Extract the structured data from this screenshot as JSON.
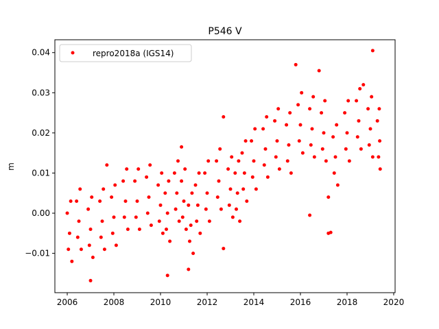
{
  "chart_data": {
    "type": "scatter",
    "title": "P546 V",
    "xlabel": "",
    "ylabel": "m",
    "xlim": [
      2005.47,
      2020.06
    ],
    "ylim": [
      -0.0198,
      0.0432
    ],
    "xticks": [
      2006,
      2008,
      2010,
      2012,
      2014,
      2016,
      2018,
      2020
    ],
    "xtick_labels": [
      "2006",
      "2008",
      "2010",
      "2012",
      "2014",
      "2016",
      "2018",
      "2020"
    ],
    "yticks": [
      -0.01,
      0.0,
      0.01,
      0.02,
      0.03,
      0.04
    ],
    "ytick_labels": [
      "−0.01",
      "0.00",
      "0.01",
      "0.02",
      "0.03",
      "0.04"
    ],
    "grid": false,
    "legend": {
      "placement": "top-left",
      "entries": [
        "repro2018a (IGS14)"
      ]
    },
    "series": [
      {
        "name": "repro2018a (IGS14)",
        "color": "#ff0000",
        "points": [
          [
            2006.0,
            0.0
          ],
          [
            2006.05,
            -0.009
          ],
          [
            2006.1,
            -0.005
          ],
          [
            2006.15,
            0.003
          ],
          [
            2006.2,
            -0.012
          ],
          [
            2006.4,
            0.003
          ],
          [
            2006.45,
            -0.006
          ],
          [
            2006.5,
            -0.002
          ],
          [
            2006.55,
            0.006
          ],
          [
            2006.6,
            -0.009
          ],
          [
            2006.9,
            0.001
          ],
          [
            2006.95,
            -0.008
          ],
          [
            2007.0,
            -0.004
          ],
          [
            2007.05,
            0.004
          ],
          [
            2007.1,
            -0.011
          ],
          [
            2007.4,
            0.003
          ],
          [
            2007.45,
            -0.006
          ],
          [
            2007.5,
            -0.002
          ],
          [
            2007.55,
            0.006
          ],
          [
            2007.6,
            -0.009
          ],
          [
            2007.9,
            0.004
          ],
          [
            2007.95,
            -0.005
          ],
          [
            2008.0,
            -0.001
          ],
          [
            2008.05,
            0.007
          ],
          [
            2008.1,
            -0.008
          ],
          [
            2008.4,
            0.008
          ],
          [
            2008.45,
            -0.001
          ],
          [
            2008.5,
            0.003
          ],
          [
            2008.55,
            0.011
          ],
          [
            2008.6,
            -0.004
          ],
          [
            2008.9,
            0.008
          ],
          [
            2008.95,
            -0.001
          ],
          [
            2009.0,
            0.003
          ],
          [
            2009.05,
            0.011
          ],
          [
            2009.1,
            -0.004
          ],
          [
            2009.4,
            0.009
          ],
          [
            2009.45,
            0.0
          ],
          [
            2009.5,
            0.004
          ],
          [
            2009.55,
            0.012
          ],
          [
            2009.6,
            -0.003
          ],
          [
            2009.9,
            0.007
          ],
          [
            2009.95,
            -0.002
          ],
          [
            2010.0,
            0.002
          ],
          [
            2010.05,
            0.01
          ],
          [
            2010.1,
            -0.005
          ],
          [
            2010.2,
            0.005
          ],
          [
            2010.25,
            -0.004
          ],
          [
            2010.3,
            0.0
          ],
          [
            2010.35,
            0.008
          ],
          [
            2010.4,
            -0.007
          ],
          [
            2010.6,
            0.01
          ],
          [
            2010.65,
            0.001
          ],
          [
            2010.7,
            0.005
          ],
          [
            2010.75,
            0.013
          ],
          [
            2010.8,
            -0.002
          ],
          [
            2010.9,
            0.008
          ],
          [
            2010.95,
            -0.001
          ],
          [
            2011.0,
            0.003
          ],
          [
            2011.05,
            0.011
          ],
          [
            2011.1,
            -0.004
          ],
          [
            2011.2,
            0.002
          ],
          [
            2011.25,
            -0.007
          ],
          [
            2011.3,
            -0.003
          ],
          [
            2011.35,
            0.005
          ],
          [
            2011.4,
            -0.01
          ],
          [
            2011.5,
            0.007
          ],
          [
            2011.55,
            -0.002
          ],
          [
            2011.6,
            0.002
          ],
          [
            2011.65,
            0.01
          ],
          [
            2011.7,
            -0.005
          ],
          [
            2011.9,
            0.01
          ],
          [
            2011.95,
            0.001
          ],
          [
            2012.0,
            0.005
          ],
          [
            2012.05,
            0.013
          ],
          [
            2012.1,
            -0.002
          ],
          [
            2012.4,
            0.013
          ],
          [
            2012.45,
            0.004
          ],
          [
            2012.5,
            0.008
          ],
          [
            2012.55,
            0.016
          ],
          [
            2012.6,
            0.001
          ],
          [
            2012.9,
            0.011
          ],
          [
            2012.95,
            0.002
          ],
          [
            2013.0,
            0.006
          ],
          [
            2013.05,
            0.014
          ],
          [
            2013.1,
            -0.001
          ],
          [
            2013.2,
            0.01
          ],
          [
            2013.25,
            0.001
          ],
          [
            2013.3,
            0.005
          ],
          [
            2013.35,
            0.013
          ],
          [
            2013.4,
            -0.002
          ],
          [
            2013.5,
            0.015
          ],
          [
            2013.55,
            0.006
          ],
          [
            2013.6,
            0.01
          ],
          [
            2013.65,
            0.018
          ],
          [
            2013.7,
            0.003
          ],
          [
            2013.9,
            0.018
          ],
          [
            2013.95,
            0.009
          ],
          [
            2014.0,
            0.013
          ],
          [
            2014.05,
            0.021
          ],
          [
            2014.1,
            0.006
          ],
          [
            2014.4,
            0.021
          ],
          [
            2014.45,
            0.012
          ],
          [
            2014.5,
            0.016
          ],
          [
            2014.55,
            0.024
          ],
          [
            2014.6,
            0.009
          ],
          [
            2014.9,
            0.023
          ],
          [
            2014.95,
            0.014
          ],
          [
            2015.0,
            0.018
          ],
          [
            2015.05,
            0.026
          ],
          [
            2015.1,
            0.011
          ],
          [
            2015.4,
            0.022
          ],
          [
            2015.45,
            0.013
          ],
          [
            2015.5,
            0.017
          ],
          [
            2015.55,
            0.025
          ],
          [
            2015.6,
            0.01
          ],
          [
            2015.9,
            0.027
          ],
          [
            2015.95,
            0.018
          ],
          [
            2016.0,
            0.022
          ],
          [
            2016.05,
            0.03
          ],
          [
            2016.1,
            0.015
          ],
          [
            2016.4,
            0.026
          ],
          [
            2016.45,
            0.017
          ],
          [
            2016.5,
            0.021
          ],
          [
            2016.55,
            0.029
          ],
          [
            2016.6,
            0.014
          ],
          [
            2016.9,
            0.025
          ],
          [
            2016.95,
            0.016
          ],
          [
            2017.0,
            0.02
          ],
          [
            2017.05,
            0.028
          ],
          [
            2017.1,
            0.013
          ],
          [
            2017.4,
            0.019
          ],
          [
            2017.45,
            0.01
          ],
          [
            2017.5,
            0.014
          ],
          [
            2017.55,
            0.022
          ],
          [
            2017.6,
            0.007
          ],
          [
            2017.9,
            0.025
          ],
          [
            2017.95,
            0.016
          ],
          [
            2018.0,
            0.02
          ],
          [
            2018.05,
            0.028
          ],
          [
            2018.1,
            0.013
          ],
          [
            2018.4,
            0.028
          ],
          [
            2018.45,
            0.019
          ],
          [
            2018.5,
            0.023
          ],
          [
            2018.55,
            0.031
          ],
          [
            2018.6,
            0.016
          ],
          [
            2018.9,
            0.026
          ],
          [
            2018.95,
            0.017
          ],
          [
            2019.0,
            0.021
          ],
          [
            2019.05,
            0.029
          ],
          [
            2019.1,
            0.014
          ],
          [
            2019.3,
            0.023
          ],
          [
            2019.35,
            0.014
          ],
          [
            2019.4,
            0.018
          ],
          [
            2019.38,
            0.026
          ],
          [
            2019.42,
            0.011
          ],
          [
            2015.8,
            0.037
          ],
          [
            2019.1,
            0.0405
          ],
          [
            2016.8,
            0.0355
          ],
          [
            2017.2,
            -0.005
          ],
          [
            2017.3,
            -0.0048
          ],
          [
            2007.0,
            -0.0168
          ],
          [
            2010.3,
            -0.0155
          ],
          [
            2011.2,
            -0.014
          ],
          [
            2012.7,
            -0.0088
          ],
          [
            2007.7,
            0.012
          ],
          [
            2010.9,
            0.0165
          ],
          [
            2012.7,
            0.024
          ],
          [
            2018.7,
            0.032
          ],
          [
            2016.4,
            -0.0005
          ],
          [
            2017.2,
            0.004
          ]
        ]
      }
    ]
  }
}
